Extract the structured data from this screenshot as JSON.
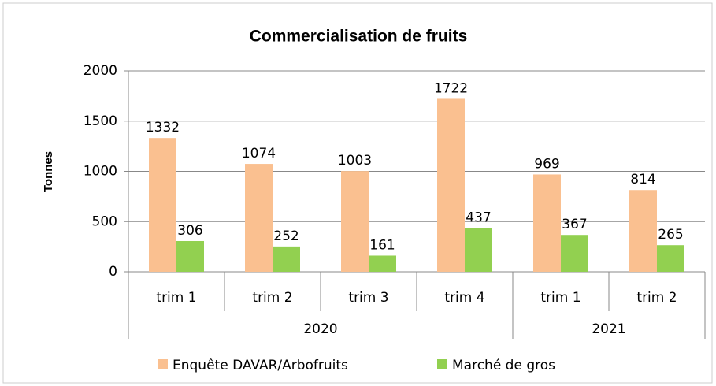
{
  "chart_data": {
    "type": "bar",
    "title": "Commercialisation de fruits",
    "ylabel": "Tonnes",
    "categories": [
      "trim 1",
      "trim 2",
      "trim 3",
      "trim 4",
      "trim 1",
      "trim 2"
    ],
    "category_groups": [
      "2020",
      "2020",
      "2020",
      "2020",
      "2021",
      "2021"
    ],
    "series": [
      {
        "name": "Enquête DAVAR/Arbofruits",
        "color": "#fac090",
        "values": [
          1332,
          1074,
          1003,
          1722,
          969,
          814
        ]
      },
      {
        "name": "Marché de gros",
        "color": "#92d050",
        "values": [
          306,
          252,
          161,
          437,
          367,
          265
        ]
      }
    ],
    "ylim": [
      0,
      2000
    ],
    "yticks": [
      0,
      500,
      1000,
      1500,
      2000
    ],
    "grid": true,
    "legend": "bottom"
  }
}
